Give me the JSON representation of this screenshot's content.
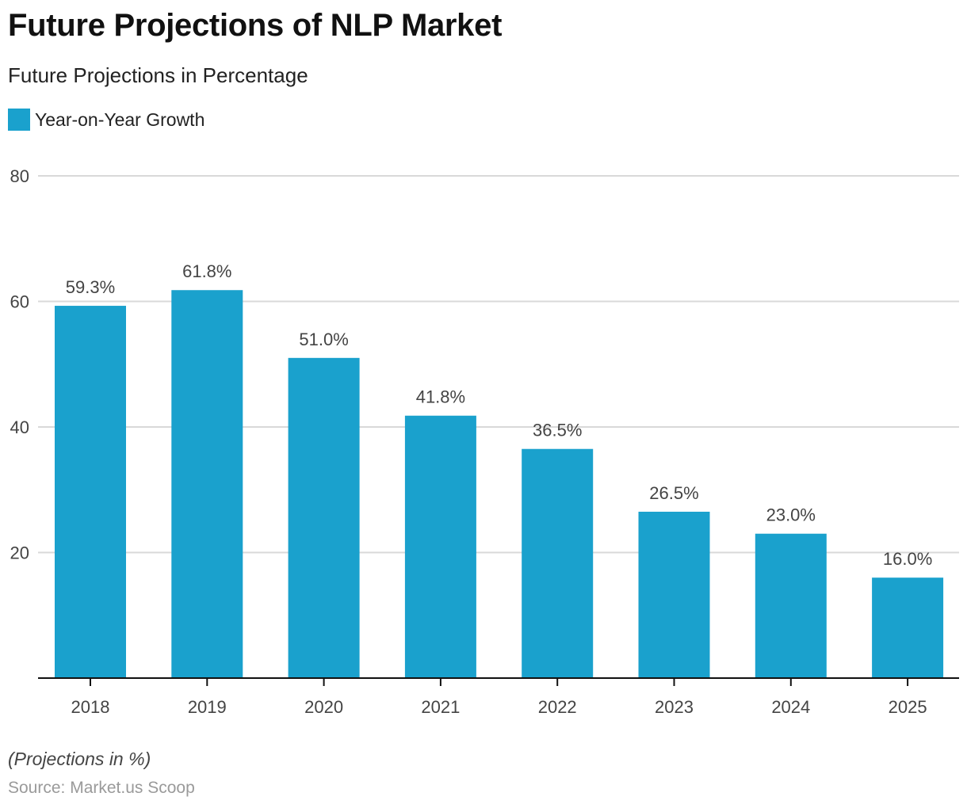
{
  "chart_data": {
    "type": "bar",
    "title": "Future Projections of NLP Market",
    "subtitle": "Future Projections in Percentage",
    "legend": [
      {
        "name": "Year-on-Year Growth",
        "color": "#1aa1cd"
      }
    ],
    "legend_position": "top-left",
    "categories": [
      "2018",
      "2019",
      "2020",
      "2021",
      "2022",
      "2023",
      "2024",
      "2025"
    ],
    "series": [
      {
        "name": "Year-on-Year Growth",
        "values": [
          59.3,
          61.8,
          51.0,
          41.8,
          36.5,
          26.5,
          23.0,
          16.0
        ]
      }
    ],
    "data_labels": [
      "59.3%",
      "61.8%",
      "51.0%",
      "41.8%",
      "36.5%",
      "26.5%",
      "23.0%",
      "16.0%"
    ],
    "xlabel": "",
    "ylabel": "",
    "ylim": [
      0,
      80
    ],
    "yticks": [
      20,
      40,
      60,
      80
    ],
    "grid": true,
    "bar_color": "#1aa1cd",
    "note": "(Projections in %)",
    "source": "Source: Market.us Scoop"
  }
}
